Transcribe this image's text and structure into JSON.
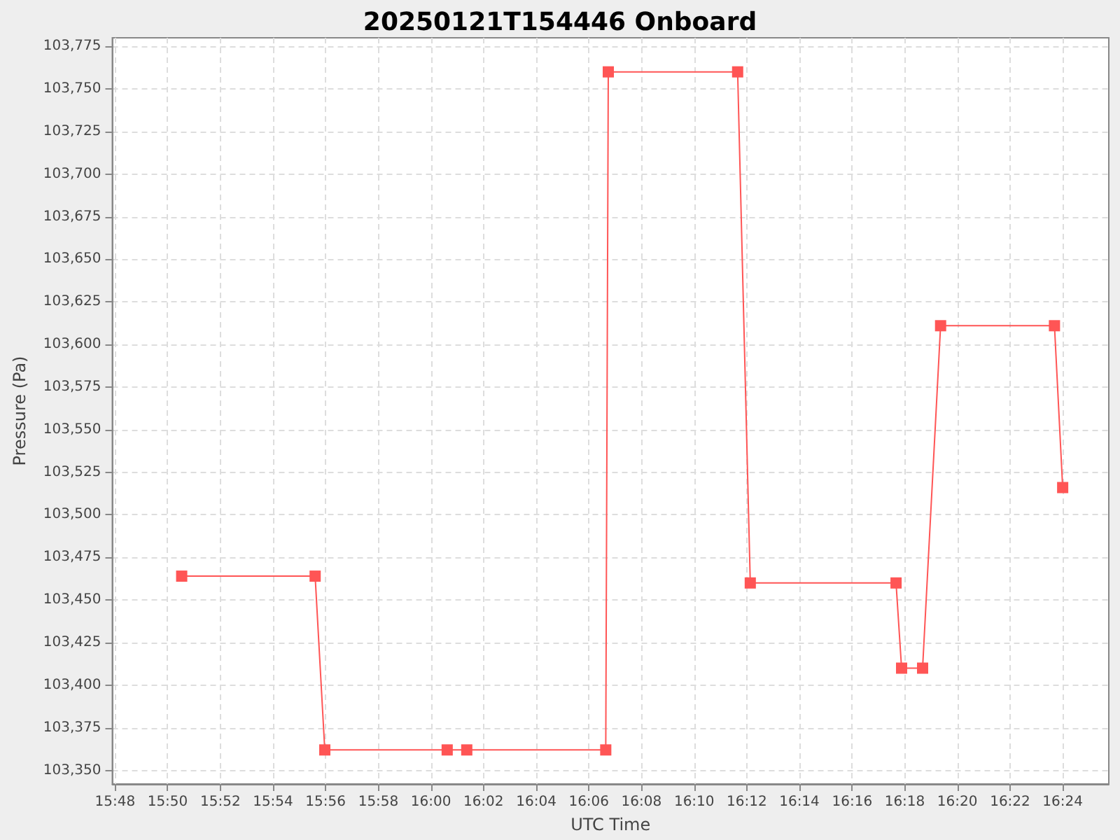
{
  "chart_data": {
    "type": "line",
    "title": "20250121T154446 Onboard",
    "xlabel": "UTC Time",
    "ylabel": "Pressure (Pa)",
    "x": [
      15.8422,
      15.9267,
      15.9328,
      16.0103,
      16.0227,
      16.1107,
      16.1123,
      16.1942,
      16.2022,
      16.2945,
      16.298,
      16.3113,
      16.3227,
      16.3948,
      16.4
    ],
    "series": [
      {
        "color": "#ff5555",
        "values": [
          103464,
          103464,
          103362,
          103362,
          103362,
          103362,
          103760,
          103760,
          103460,
          103460,
          103410,
          103410,
          103611,
          103611,
          103516
        ]
      }
    ],
    "xlim": [
      15.7983,
      16.4292
    ],
    "xticks": [
      {
        "value": 15.8,
        "label": "15:48"
      },
      {
        "value": 15.8333,
        "label": "15:50"
      },
      {
        "value": 15.8667,
        "label": "15:52"
      },
      {
        "value": 15.9,
        "label": "15:54"
      },
      {
        "value": 15.9333,
        "label": "15:56"
      },
      {
        "value": 15.9667,
        "label": "15:58"
      },
      {
        "value": 16.0,
        "label": "16:00"
      },
      {
        "value": 16.0333,
        "label": "16:02"
      },
      {
        "value": 16.0667,
        "label": "16:04"
      },
      {
        "value": 16.1,
        "label": "16:06"
      },
      {
        "value": 16.1333,
        "label": "16:08"
      },
      {
        "value": 16.1667,
        "label": "16:10"
      },
      {
        "value": 16.2,
        "label": "16:12"
      },
      {
        "value": 16.2333,
        "label": "16:14"
      },
      {
        "value": 16.2667,
        "label": "16:16"
      },
      {
        "value": 16.3,
        "label": "16:18"
      },
      {
        "value": 16.3333,
        "label": "16:20"
      },
      {
        "value": 16.3667,
        "label": "16:22"
      },
      {
        "value": 16.4,
        "label": "16:24"
      }
    ],
    "ylim": [
      103342,
      103780
    ],
    "yticks": [
      {
        "value": 103350,
        "label": "103,350"
      },
      {
        "value": 103375,
        "label": "103,375"
      },
      {
        "value": 103400,
        "label": "103,400"
      },
      {
        "value": 103425,
        "label": "103,425"
      },
      {
        "value": 103450,
        "label": "103,450"
      },
      {
        "value": 103475,
        "label": "103,475"
      },
      {
        "value": 103500,
        "label": "103,500"
      },
      {
        "value": 103525,
        "label": "103,525"
      },
      {
        "value": 103550,
        "label": "103,550"
      },
      {
        "value": 103575,
        "label": "103,575"
      },
      {
        "value": 103600,
        "label": "103,600"
      },
      {
        "value": 103625,
        "label": "103,625"
      },
      {
        "value": 103650,
        "label": "103,650"
      },
      {
        "value": 103675,
        "label": "103,675"
      },
      {
        "value": 103700,
        "label": "103,700"
      },
      {
        "value": 103725,
        "label": "103,725"
      },
      {
        "value": 103750,
        "label": "103,750"
      },
      {
        "value": 103775,
        "label": "103,775"
      }
    ],
    "grid": true,
    "marker": "square",
    "line_style": "solid"
  }
}
